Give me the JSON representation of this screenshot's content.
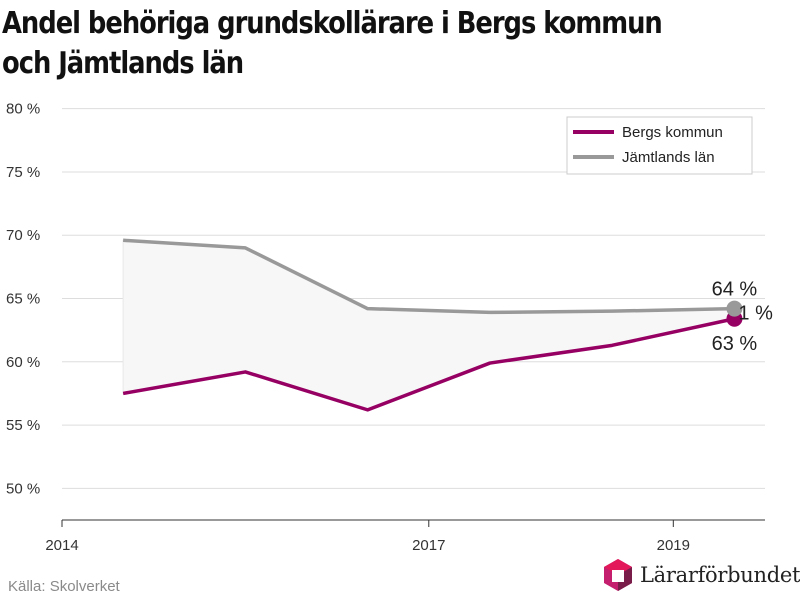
{
  "chart_data": {
    "type": "line",
    "title": "Andel behöriga grundskollärare i Bergs kommun och Jämtlands län",
    "x": [
      2014.5,
      2015.5,
      2016.5,
      2017.5,
      2018.5,
      2019.5
    ],
    "xlim": [
      2014,
      2019.75
    ],
    "xticks": [
      2014,
      2017,
      2019
    ],
    "xtick_labels": [
      "2014",
      "2017",
      "2019"
    ],
    "ylim": [
      47.5,
      81
    ],
    "yticks": [
      50,
      55,
      60,
      65,
      70,
      75,
      80
    ],
    "ytick_labels": [
      "50 %",
      "55 %",
      "60 %",
      "65 %",
      "70 %",
      "75 %",
      "80 %"
    ],
    "grid": true,
    "legend_position": "top-right",
    "shaded_between_series": true,
    "series": [
      {
        "name": "Bergs kommun",
        "color": "#960063",
        "values": [
          57.5,
          59.2,
          56.2,
          59.9,
          61.3,
          63.4
        ],
        "end_label": "63 %"
      },
      {
        "name": "Jämtlands län",
        "color": "#999999",
        "values": [
          69.6,
          69.0,
          64.2,
          63.9,
          64.0,
          64.2
        ],
        "end_label": "64 %"
      }
    ],
    "extra_labels": [
      "1 %"
    ]
  },
  "source": "Källa: Skolverket",
  "brand": {
    "name": "Lärarförbundet",
    "colors": [
      "#c41e6e",
      "#e2185b",
      "#7a1c4a"
    ]
  }
}
